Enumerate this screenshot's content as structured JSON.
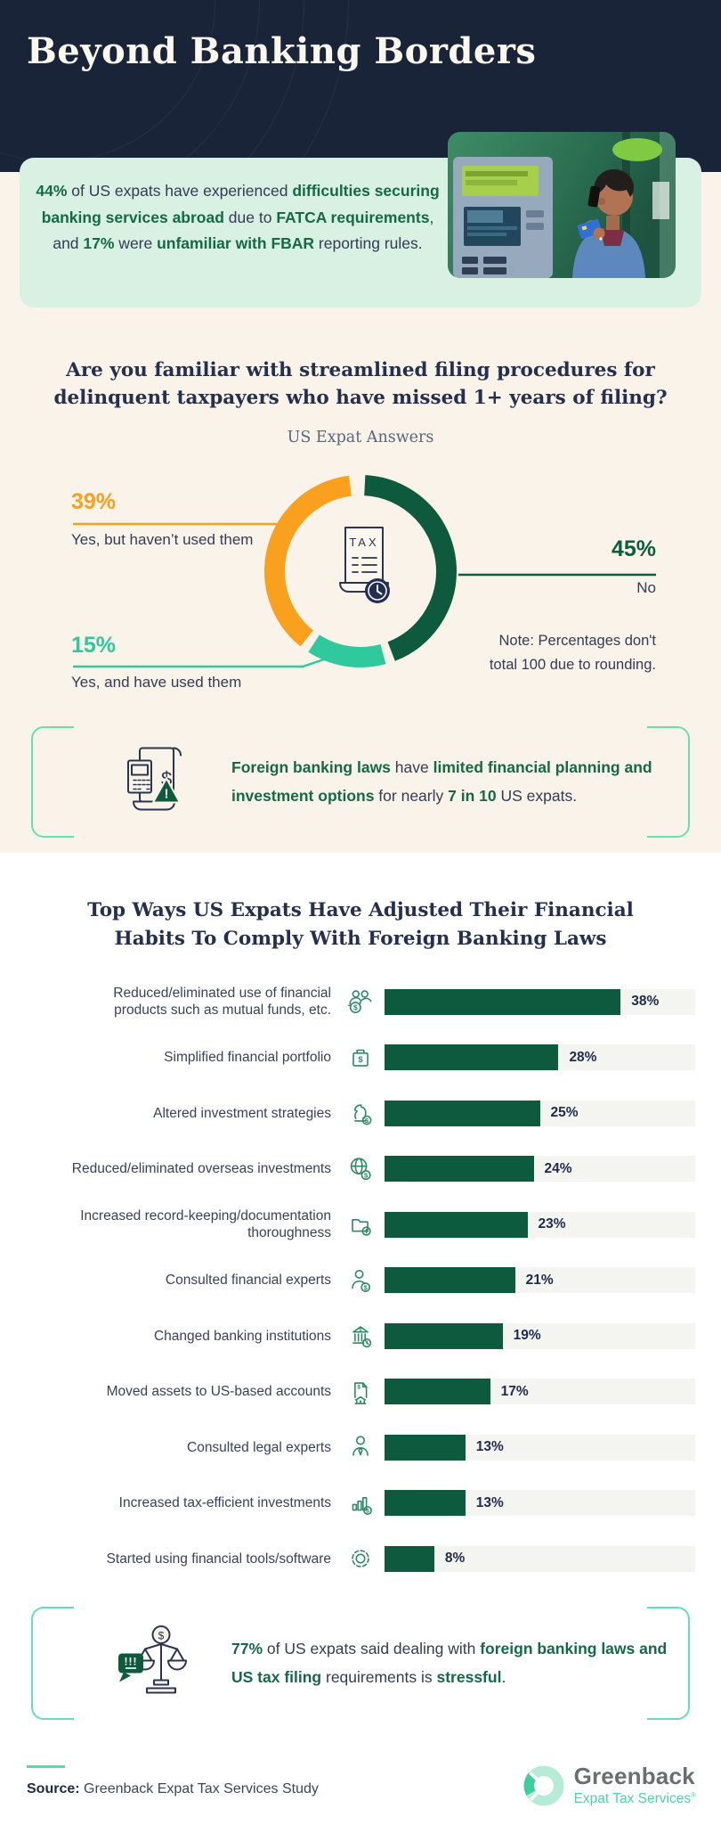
{
  "page_title": "Beyond Banking Borders",
  "intro": {
    "segments": [
      {
        "text": "44%",
        "em": true
      },
      {
        "text": " of US expats have experienced ",
        "em": false
      },
      {
        "text": "difficulties securing banking services abroad",
        "em": true
      },
      {
        "text": " due to ",
        "em": false
      },
      {
        "text": "FATCA requirements",
        "em": true
      },
      {
        "text": ", and ",
        "em": false
      },
      {
        "text": "17%",
        "em": true
      },
      {
        "text": " were ",
        "em": false
      },
      {
        "text": "unfamiliar with FBAR",
        "em": true
      },
      {
        "text": " reporting rules.",
        "em": false
      }
    ]
  },
  "question_section": {
    "title_line1": "Are you familiar with streamlined filing procedures for",
    "title_line2": "delinquent taxpayers who have missed 1+ years of filing?",
    "subtitle": "US Expat Answers",
    "note_line1": "Note: Percentages don't",
    "note_line2": "total 100 due to rounding."
  },
  "donut_labels": {
    "orange_pct": "39%",
    "orange_text": "Yes, but haven’t used them",
    "green_pct": "45%",
    "green_text": "No",
    "mint_pct": "15%",
    "mint_text": "Yes, and have used them"
  },
  "chart_data": [
    {
      "type": "pie",
      "donut": true,
      "title": "US Expat Answers",
      "question": "Are you familiar with streamlined filing procedures for delinquent taxpayers who have missed 1+ years of filing?",
      "start": "top",
      "direction": "clockwise",
      "slices": [
        {
          "label": "No",
          "value": 45,
          "color": "#0d5a3f"
        },
        {
          "label": "Yes, and have used them",
          "value": 15,
          "color": "#2fc99d"
        },
        {
          "label": "Yes, but haven’t used them",
          "value": 39,
          "color": "#f9a01f"
        }
      ],
      "center_icon": "tax-document-clock-icon",
      "note": "Note: Percentages don't total 100 due to rounding."
    },
    {
      "type": "bar",
      "orientation": "horizontal",
      "title": "Top Ways US Expats Have Adjusted Their Financial Habits To Comply With Foreign Banking Laws",
      "categories": [
        "Reduced/eliminated use of financial products such as mutual funds, etc.",
        "Simplified financial portfolio",
        "Altered investment strategies",
        "Reduced/eliminated overseas investments",
        "Increased record-keeping/documentation thoroughness",
        "Consulted financial experts",
        "Changed banking institutions",
        "Moved assets to US-based accounts",
        "Consulted legal experts",
        "Increased tax-efficient investments",
        "Started using financial tools/software"
      ],
      "label_lines": [
        [
          "Reduced/eliminated use of financial",
          "products such as mutual funds, etc."
        ],
        [
          "Simplified financial portfolio"
        ],
        [
          "Altered investment strategies"
        ],
        [
          "Reduced/eliminated overseas investments"
        ],
        [
          "Increased record-keeping/documentation",
          "thoroughness"
        ],
        [
          "Consulted financial experts"
        ],
        [
          "Changed banking institutions"
        ],
        [
          "Moved assets to US-based accounts"
        ],
        [
          "Consulted legal experts"
        ],
        [
          "Increased tax-efficient investments"
        ],
        [
          "Started using financial tools/software"
        ]
      ],
      "values": [
        38,
        28,
        25,
        24,
        23,
        21,
        19,
        17,
        13,
        13,
        8
      ],
      "value_labels": [
        "38%",
        "28%",
        "25%",
        "24%",
        "23%",
        "21%",
        "19%",
        "17%",
        "13%",
        "13%",
        "8%"
      ],
      "icons": [
        "people-coins-icon",
        "briefcase-dollar-icon",
        "chess-knight-coin-icon",
        "globe-coin-icon",
        "folder-plus-icon",
        "person-coin-icon",
        "bank-clock-icon",
        "document-bank-icon",
        "person-tie-icon",
        "chart-coin-icon",
        "gear-icon"
      ],
      "xlim": [
        0,
        50
      ],
      "bar_color": "#0d5a3f",
      "track_color": "#f4f4f1",
      "grid": false,
      "legend": false
    }
  ],
  "bar_section": {
    "title_line1": "Top Ways US Expats Have Adjusted Their Financial",
    "title_line2": "Habits To Comply With Foreign Banking Laws"
  },
  "callout1": {
    "icon": "receipt-alert-icon",
    "segments": [
      {
        "text": "Foreign banking laws",
        "em": true
      },
      {
        "text": " have ",
        "em": false
      },
      {
        "text": "limited financial planning and investment options",
        "em": true
      },
      {
        "text": " for nearly ",
        "em": false
      },
      {
        "text": "7 in 10",
        "em": true
      },
      {
        "text": " US expats.",
        "em": false
      }
    ]
  },
  "callout2": {
    "icon": "scale-alert-icon",
    "segments": [
      {
        "text": "77%",
        "em": true
      },
      {
        "text": " of US expats said dealing with ",
        "em": false
      },
      {
        "text": "foreign banking laws and US tax filing",
        "em": true
      },
      {
        "text": " requirements is ",
        "em": false
      },
      {
        "text": "stressful",
        "em": true
      },
      {
        "text": ".",
        "em": false
      }
    ]
  },
  "footer": {
    "source_label": "Source:",
    "source_text": " Greenback Expat Tax Services Study",
    "logo_name": "Greenback",
    "logo_subtitle": "Expat Tax Services",
    "logo_registered": "®"
  },
  "colors": {
    "header_bg": "#1a2439",
    "cream_bg": "#faf3e9",
    "mint_box_bg": "#d8f1e3",
    "accent_green": "#156947",
    "navy_text": "#333b56",
    "heading_navy": "#25304e",
    "donut_green": "#0d5a3f",
    "donut_mint": "#2fc99d",
    "donut_orange": "#f9a01f",
    "bracket_mint": "#68dfb3",
    "bar_track": "#f4f4f1",
    "icon_green": "#2e8a63",
    "logo_gray": "#6b6e71",
    "logo_mint": "#4fd0a7"
  }
}
